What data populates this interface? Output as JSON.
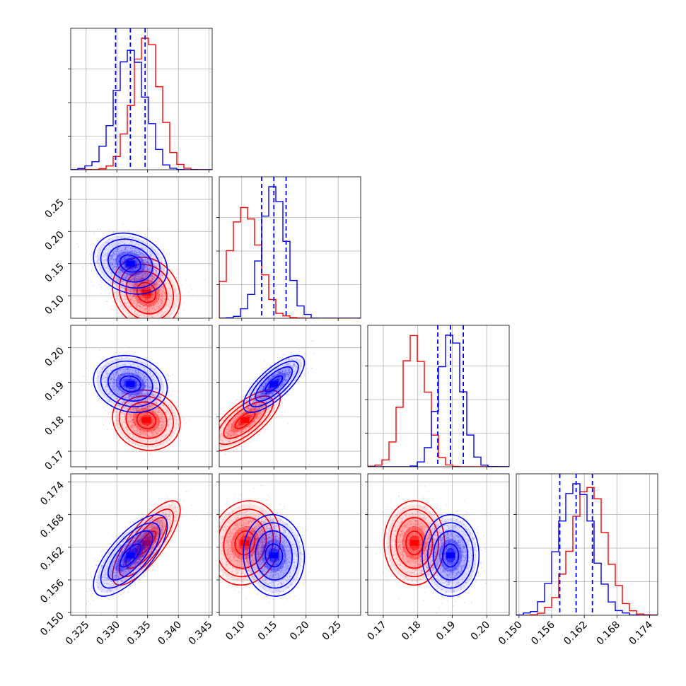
{
  "chart_data": {
    "type": "corner",
    "grid": true,
    "parameters": [
      {
        "range": [
          0.3225,
          0.3455
        ],
        "ticks": [
          0.325,
          0.33,
          0.335,
          0.34,
          0.345
        ],
        "tick_labels": [
          "0.325",
          "0.330",
          "0.335",
          "0.340",
          "0.345"
        ]
      },
      {
        "range": [
          0.065,
          0.285
        ],
        "ticks": [
          0.1,
          0.15,
          0.2,
          0.25
        ],
        "tick_labels": [
          "0.10",
          "0.15",
          "0.20",
          "0.25"
        ]
      },
      {
        "range": [
          0.1655,
          0.2065
        ],
        "ticks": [
          0.17,
          0.18,
          0.19,
          0.2
        ],
        "tick_labels": [
          "0.17",
          "0.18",
          "0.19",
          "0.20"
        ]
      },
      {
        "range": [
          0.1495,
          0.1755
        ],
        "ticks": [
          0.15,
          0.156,
          0.162,
          0.168,
          0.174
        ],
        "tick_labels": [
          "0.150",
          "0.156",
          "0.162",
          "0.168",
          "0.174"
        ]
      }
    ],
    "series": [
      {
        "color": "#ff0000",
        "mean": [
          0.3348,
          0.105,
          0.179,
          0.1628
        ],
        "std": [
          0.0022,
          0.022,
          0.0035,
          0.0031
        ],
        "correlation": [
          [
            1.0,
            -0.15,
            -0.1,
            0.78
          ],
          [
            -0.15,
            1.0,
            0.72,
            0.12
          ],
          [
            -0.1,
            0.72,
            1.0,
            0.0
          ],
          [
            0.78,
            0.12,
            0.0,
            1.0
          ]
        ],
        "quantile_lines": false
      },
      {
        "color": "#0000ff",
        "mean": [
          0.3322,
          0.15,
          0.1895,
          0.1605
        ],
        "std": [
          0.0024,
          0.019,
          0.0033,
          0.003
        ],
        "correlation": [
          [
            1.0,
            -0.2,
            -0.15,
            0.72
          ],
          [
            -0.2,
            1.0,
            0.75,
            -0.05
          ],
          [
            -0.15,
            0.75,
            1.0,
            0.0
          ],
          [
            0.72,
            -0.05,
            0.0,
            1.0
          ]
        ],
        "quantile_lines": true,
        "quantiles": [
          [
            0.3298,
            0.3322,
            0.3346
          ],
          [
            0.131,
            0.15,
            0.169
          ],
          [
            0.1858,
            0.1895,
            0.1932
          ],
          [
            0.1575,
            0.1605,
            0.1635
          ]
        ]
      }
    ]
  }
}
